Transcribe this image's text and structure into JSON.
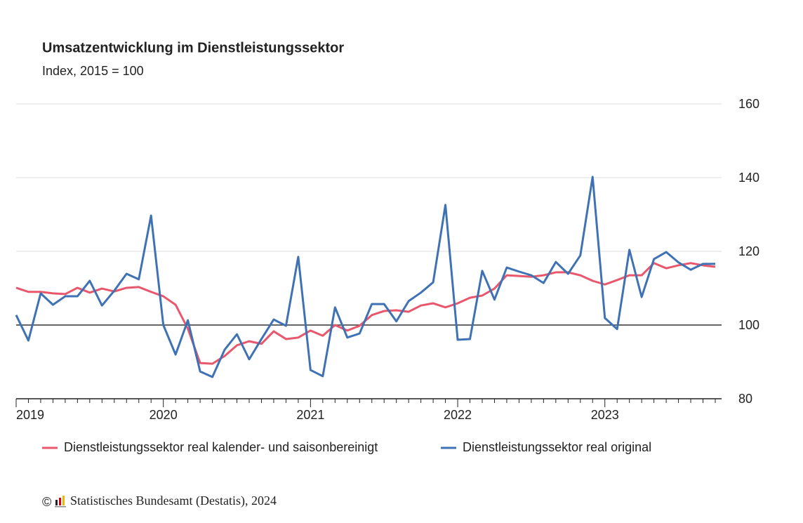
{
  "chart_data": {
    "type": "line",
    "title": "Umsatzentwicklung im Dienstleistungssektor",
    "subtitle": "Index, 2015 = 100",
    "categories": [
      "2019",
      null,
      null,
      null,
      null,
      null,
      null,
      null,
      null,
      null,
      null,
      null,
      "2020",
      null,
      null,
      null,
      null,
      null,
      null,
      null,
      null,
      null,
      null,
      null,
      "2021",
      null,
      null,
      null,
      null,
      null,
      null,
      null,
      null,
      null,
      null,
      null,
      "2022",
      null,
      null,
      null,
      null,
      null,
      null,
      null,
      null,
      null,
      null,
      null,
      "2023",
      null,
      null,
      null,
      null,
      null,
      null,
      null,
      null,
      null
    ],
    "series": [
      {
        "name": "Dienstleistungssektor real kalender- und saisonbereinigt",
        "color": "#e8576c",
        "values": [
          110.1,
          109,
          109,
          108.6,
          108.4,
          110.1,
          108.8,
          109.9,
          109.1,
          110.1,
          110.3,
          109,
          107.8,
          105.5,
          99,
          89.7,
          89.5,
          91.6,
          94.5,
          95.6,
          94.9,
          98.3,
          96.2,
          96.6,
          98.5,
          97.1,
          100,
          98.5,
          99.8,
          102.7,
          103.8,
          104,
          103.6,
          105.3,
          105.9,
          104.8,
          105.9,
          107.4,
          108,
          109.9,
          113.5,
          113.3,
          113.1,
          113.5,
          114.3,
          114.3,
          113.5,
          112,
          111,
          112.2,
          113.5,
          113.5,
          116.8,
          115.4,
          116.2,
          116.8,
          116.2,
          115.8
        ]
      },
      {
        "name": "Dienstleistungssektor real original",
        "color": "#3f72b5",
        "values": [
          102.7,
          95.8,
          108.6,
          105.5,
          107.8,
          107.8,
          112,
          105.3,
          109.3,
          113.9,
          112.4,
          129.7,
          100,
          92,
          101.3,
          87.4,
          85.9,
          93.3,
          97.5,
          90.7,
          96.2,
          101.5,
          99.8,
          118.5,
          87.8,
          86.1,
          104.8,
          96.6,
          97.7,
          105.7,
          105.7,
          101,
          106.5,
          108.8,
          111.6,
          132.6,
          96,
          96.2,
          114.7,
          106.9,
          115.6,
          114.5,
          113.5,
          111.4,
          117.1,
          113.9,
          118.9,
          140.2,
          101.9,
          98.9,
          120.4,
          107.6,
          117.9,
          119.8,
          117,
          115,
          116.6,
          116.6
        ]
      }
    ],
    "ylim": [
      80,
      160
    ],
    "yticks": [
      80,
      100,
      120,
      140,
      160
    ],
    "grid": true,
    "reference_line": 100,
    "source": "Statistisches Bundesamt (Destatis), 2024"
  }
}
